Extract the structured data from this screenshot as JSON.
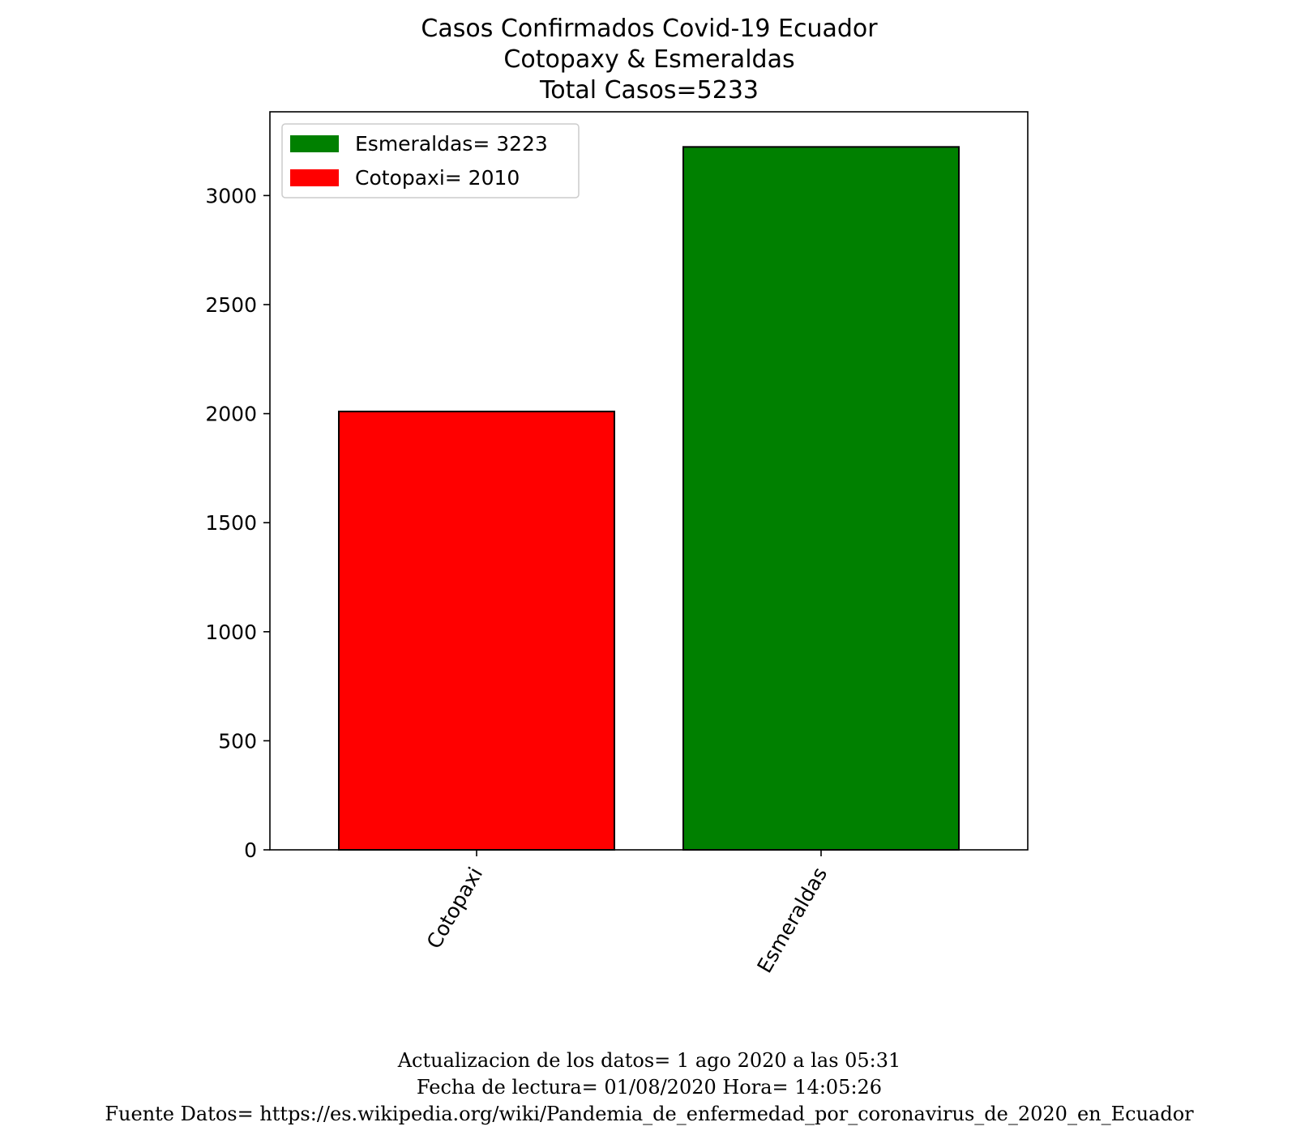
{
  "chart_data": {
    "type": "bar",
    "title_lines": [
      "Casos Confirmados Covid-19 Ecuador",
      "Cotopaxy & Esmeraldas",
      "Total Casos=5233"
    ],
    "categories": [
      "Cotopaxi",
      "Esmeraldas"
    ],
    "values": [
      2010,
      3223
    ],
    "bar_colors": [
      "#ff0000",
      "#008000"
    ],
    "edge_color": "#000000",
    "ylim": [
      0,
      3384
    ],
    "yticks": [
      0,
      500,
      1000,
      1500,
      2000,
      2500,
      3000
    ],
    "xlabel": "",
    "ylabel": "",
    "grid": false,
    "x_tick_rotation": 60,
    "legend": {
      "placement": "top-left",
      "entries": [
        {
          "label": "Esmeraldas= 3223",
          "color": "#008000"
        },
        {
          "label": "Cotopaxi= 2010",
          "color": "#ff0000"
        }
      ]
    }
  },
  "footer": {
    "lines": [
      "Actualizacion de los datos= 1 ago 2020 a las 05:31",
      "Fecha de lectura= 01/08/2020 Hora= 14:05:26",
      "Fuente Datos= https://es.wikipedia.org/wiki/Pandemia_de_enfermedad_por_coronavirus_de_2020_en_Ecuador"
    ]
  }
}
